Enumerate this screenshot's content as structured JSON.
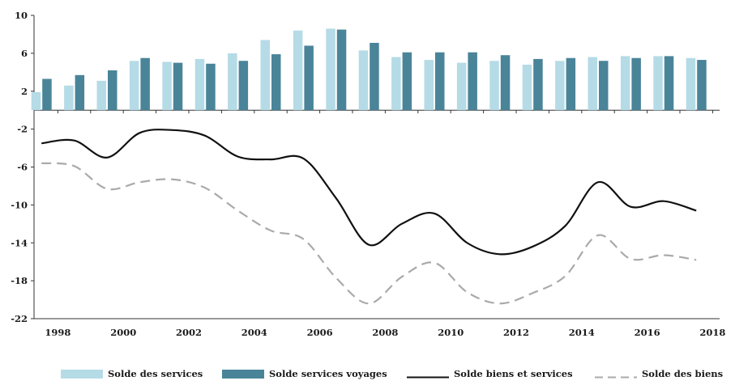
{
  "chart_data": {
    "type": "bar",
    "x": [
      1997.5,
      1998.5,
      1999.5,
      2000.5,
      2001.5,
      2002.5,
      2003.5,
      2004.5,
      2005.5,
      2006.5,
      2007.5,
      2008.5,
      2009.5,
      2010.5,
      2011.5,
      2012.5,
      2013.5,
      2014.5,
      2015.5,
      2016.5,
      2017.5
    ],
    "ylim": [
      -22,
      10
    ],
    "yticks": [
      10,
      6,
      2,
      -2,
      -6,
      -10,
      -14,
      -18,
      -22
    ],
    "xticks": [
      "1998",
      "2000",
      "2002",
      "2004",
      "2006",
      "2008",
      "2010",
      "2012",
      "2014",
      "2016",
      "2018"
    ],
    "grid": false,
    "legend_position": "bottom",
    "series": [
      {
        "name": "Solde des services",
        "kind": "bar",
        "color": "#b5dbe6",
        "values": [
          1.9,
          2.6,
          3.1,
          5.2,
          5.1,
          5.4,
          6.0,
          7.4,
          8.4,
          8.6,
          6.3,
          5.6,
          5.3,
          5.0,
          5.2,
          4.8,
          5.2,
          5.6,
          5.7,
          5.7,
          5.5
        ]
      },
      {
        "name": "Solde services voyages",
        "kind": "bar",
        "color": "#4a8499",
        "values": [
          3.3,
          3.7,
          4.2,
          5.5,
          5.0,
          4.9,
          5.2,
          5.9,
          6.8,
          8.5,
          7.1,
          6.1,
          6.1,
          6.1,
          5.8,
          5.4,
          5.5,
          5.2,
          5.5,
          5.7,
          5.3
        ]
      },
      {
        "name": "Solde biens et services",
        "kind": "line",
        "color": "#111111",
        "values": [
          -3.5,
          -3.2,
          -5.0,
          -2.4,
          -2.1,
          -2.7,
          -4.9,
          -5.2,
          -5.1,
          -9.3,
          -14.2,
          -12.0,
          -10.9,
          -14.0,
          -15.2,
          -14.4,
          -12.2,
          -7.6,
          -10.2,
          -9.6,
          -10.6
        ]
      },
      {
        "name": "Solde des biens",
        "kind": "dashed-line",
        "color": "#aaaaaa",
        "values": [
          -5.6,
          -5.9,
          -8.3,
          -7.6,
          -7.3,
          -8.2,
          -10.6,
          -12.7,
          -13.6,
          -17.7,
          -20.4,
          -17.6,
          -16.1,
          -19.2,
          -20.4,
          -19.3,
          -17.5,
          -13.2,
          -15.7,
          -15.3,
          -15.8
        ]
      }
    ]
  }
}
